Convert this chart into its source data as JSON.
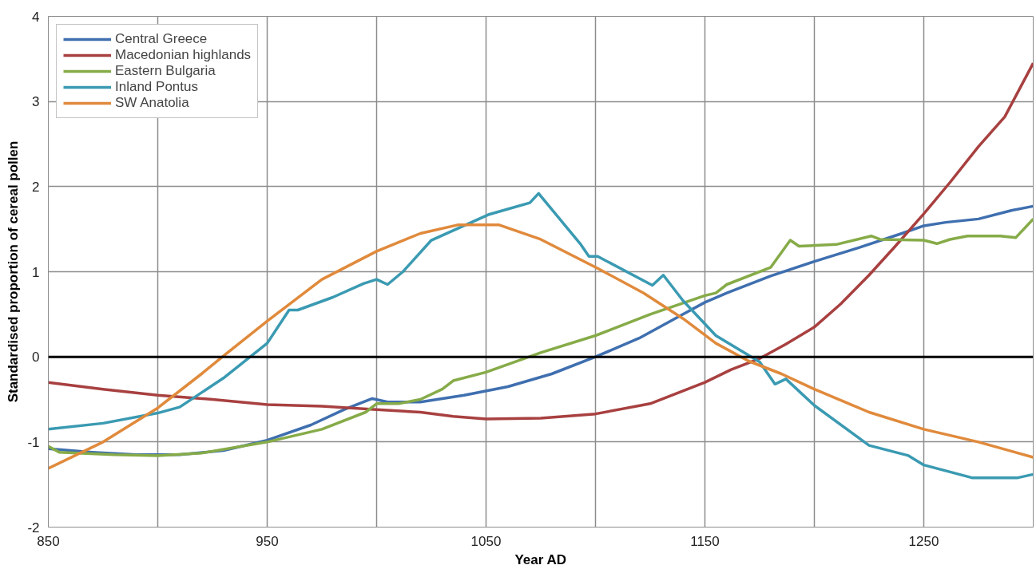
{
  "chart_data": {
    "type": "line",
    "xlabel": "Year AD",
    "ylabel": "Standardised proportion of cereal pollen",
    "xlim": [
      850,
      1300
    ],
    "ylim": [
      -2,
      4
    ],
    "xticks": [
      850,
      {
        "value": 900,
        "label": null
      },
      950,
      {
        "value": 1000,
        "label": null
      },
      1050,
      {
        "value": 1100,
        "label": null
      },
      1150,
      {
        "value": 1200,
        "label": null
      },
      1250
    ],
    "yticks": [
      -2,
      -1,
      0,
      1,
      2,
      3,
      4
    ],
    "grid": true,
    "legend": "top left",
    "marker": "none",
    "line_style": "solid",
    "ref_lines": [
      {
        "axis": "y",
        "value": 0,
        "color": "#000000"
      }
    ],
    "series": [
      {
        "name": "Central Greece",
        "color": "#3f6faf",
        "x": [
          850,
          870,
          890,
          910,
          930,
          950,
          970,
          985,
          998,
          1005,
          1020,
          1040,
          1060,
          1080,
          1100,
          1120,
          1140,
          1150,
          1160,
          1180,
          1200,
          1220,
          1240,
          1250,
          1260,
          1275,
          1290,
          1300
        ],
        "values": [
          -1.08,
          -1.12,
          -1.15,
          -1.15,
          -1.1,
          -0.98,
          -0.8,
          -0.62,
          -0.49,
          -0.53,
          -0.53,
          -0.45,
          -0.35,
          -0.2,
          0.0,
          0.22,
          0.5,
          0.64,
          0.75,
          0.95,
          1.12,
          1.28,
          1.45,
          1.54,
          1.58,
          1.62,
          1.72,
          1.77
        ]
      },
      {
        "name": "Macedonian highlands",
        "color": "#a84040",
        "x": [
          850,
          875,
          900,
          925,
          950,
          975,
          1000,
          1020,
          1035,
          1050,
          1075,
          1100,
          1125,
          1150,
          1162,
          1175,
          1187,
          1200,
          1212,
          1225,
          1237,
          1250,
          1262,
          1275,
          1287,
          1300
        ],
        "values": [
          -0.3,
          -0.38,
          -0.45,
          -0.5,
          -0.56,
          -0.58,
          -0.62,
          -0.65,
          -0.7,
          -0.73,
          -0.72,
          -0.67,
          -0.55,
          -0.3,
          -0.15,
          -0.02,
          0.15,
          0.35,
          0.62,
          0.96,
          1.3,
          1.68,
          2.05,
          2.47,
          2.82,
          3.45
        ]
      },
      {
        "name": "Eastern Bulgaria",
        "color": "#86ab48",
        "x": [
          850,
          855,
          880,
          900,
          920,
          950,
          975,
          995,
          1000,
          1010,
          1020,
          1030,
          1035,
          1050,
          1075,
          1100,
          1125,
          1150,
          1155,
          1160,
          1180,
          1189,
          1193,
          1210,
          1226,
          1230,
          1250,
          1256,
          1262,
          1270,
          1285,
          1292,
          1300
        ],
        "values": [
          -1.05,
          -1.12,
          -1.15,
          -1.16,
          -1.13,
          -1.0,
          -0.85,
          -0.65,
          -0.55,
          -0.55,
          -0.5,
          -0.38,
          -0.28,
          -0.18,
          0.05,
          0.25,
          0.5,
          0.72,
          0.75,
          0.85,
          1.05,
          1.37,
          1.3,
          1.32,
          1.42,
          1.38,
          1.37,
          1.33,
          1.38,
          1.42,
          1.42,
          1.4,
          1.62
        ]
      },
      {
        "name": "Inland Pontus",
        "color": "#3a9ab2",
        "x": [
          850,
          875,
          900,
          910,
          930,
          950,
          960,
          964,
          980,
          994,
          1000,
          1005,
          1012,
          1025,
          1051,
          1070,
          1074,
          1093,
          1097,
          1101,
          1126,
          1131,
          1140,
          1155,
          1175,
          1182,
          1187,
          1200,
          1225,
          1243,
          1250,
          1272,
          1293,
          1300
        ],
        "values": [
          -0.85,
          -0.78,
          -0.66,
          -0.59,
          -0.25,
          0.16,
          0.55,
          0.55,
          0.7,
          0.86,
          0.91,
          0.85,
          1.0,
          1.37,
          1.67,
          1.81,
          1.92,
          1.33,
          1.18,
          1.18,
          0.84,
          0.96,
          0.66,
          0.25,
          -0.06,
          -0.32,
          -0.26,
          -0.57,
          -1.04,
          -1.16,
          -1.27,
          -1.42,
          -1.42,
          -1.38
        ]
      },
      {
        "name": "SW Anatolia",
        "color": "#e08a3c",
        "x": [
          850,
          875,
          900,
          920,
          931,
          950,
          975,
          1000,
          1020,
          1037,
          1056,
          1075,
          1101,
          1122,
          1140,
          1155,
          1170,
          1185,
          1200,
          1225,
          1250,
          1275,
          1300
        ],
        "values": [
          -1.31,
          -1.0,
          -0.6,
          -0.2,
          0.03,
          0.42,
          0.91,
          1.24,
          1.45,
          1.55,
          1.55,
          1.38,
          1.04,
          0.75,
          0.45,
          0.16,
          -0.05,
          -0.2,
          -0.38,
          -0.65,
          -0.85,
          -1.0,
          -1.18
        ]
      }
    ]
  }
}
